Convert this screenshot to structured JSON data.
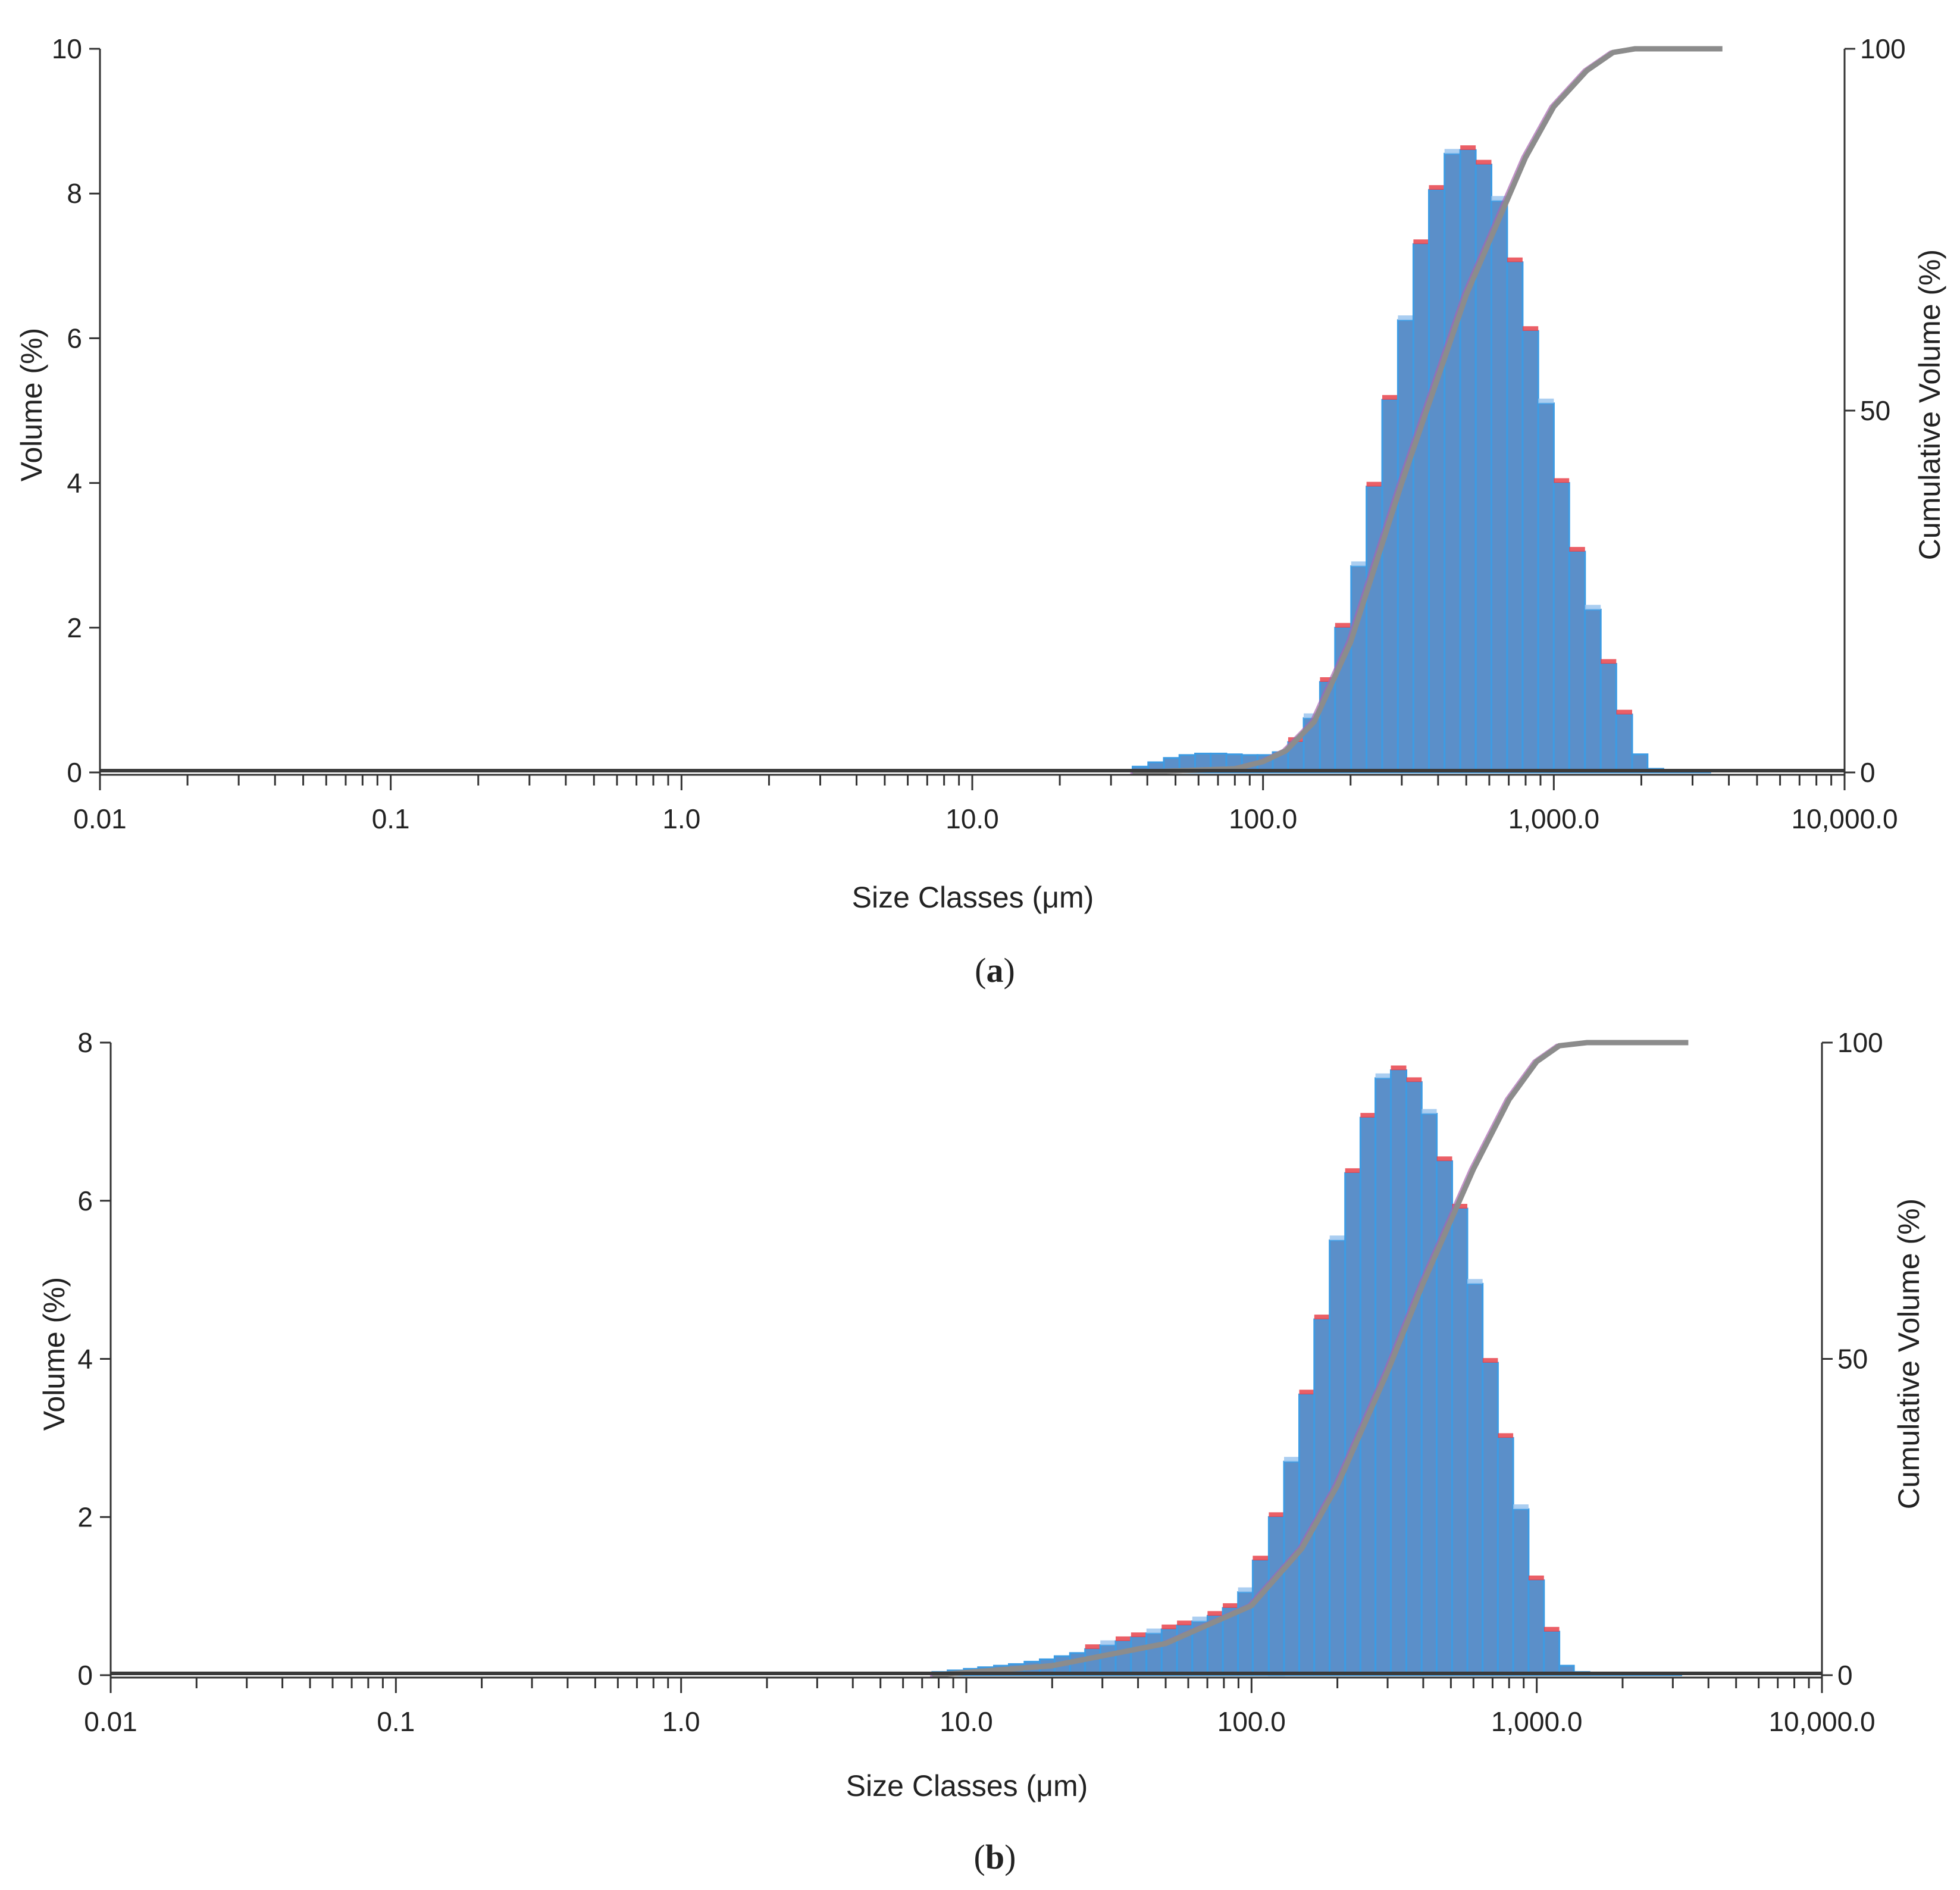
{
  "colors": {
    "bar_fill": "#5b8fc9",
    "bar_edge": "#3d9be3",
    "bar_highlight_red": "#e8434b",
    "bar_highlight_light": "#9cc6ee",
    "cumulative_line": "#8c8c8c",
    "cumulative_line_alt": "#a864b0",
    "axis": "#333333"
  },
  "chart_data": [
    {
      "type": "bar",
      "panel": "(a)",
      "xlabel": "Size Classes (μm)",
      "ylabel": "Volume (%)",
      "y2label": "Cumulative Volume (%)",
      "xscale": "log",
      "xlim": [
        0.01,
        10000
      ],
      "ylim": [
        0,
        10
      ],
      "y2lim": [
        0,
        100
      ],
      "xticks": [
        "0.01",
        "0.1",
        "1.0",
        "10.0",
        "100.0",
        "1,000.0",
        "10,000.0"
      ],
      "yticks": [
        "0",
        "2",
        "4",
        "6",
        "8",
        "10"
      ],
      "y2ticks": [
        "0",
        "50",
        "100"
      ],
      "grid": false,
      "bins_um": [
        35.6,
        40.3,
        45.6,
        51.6,
        58.4,
        66.1,
        74.8,
        84.6,
        95.7,
        108,
        122,
        138,
        157,
        177,
        201,
        227,
        257,
        291,
        329,
        372,
        421,
        477,
        539,
        610,
        691,
        781,
        884,
        1000,
        1130,
        1280,
        1450,
        1640,
        1860,
        2100,
        2380,
        2690,
        3050,
        3450
      ],
      "values": [
        0.08,
        0.14,
        0.2,
        0.24,
        0.26,
        0.26,
        0.25,
        0.24,
        0.24,
        0.28,
        0.42,
        0.75,
        1.25,
        2.0,
        2.85,
        3.95,
        5.15,
        6.25,
        7.3,
        8.05,
        8.55,
        8.6,
        8.4,
        7.9,
        7.05,
        6.1,
        5.1,
        4.0,
        3.05,
        2.25,
        1.5,
        0.8,
        0.25,
        0.05,
        0.03,
        0.02,
        0.01,
        0.0
      ],
      "cumulative": {
        "x_um": [
          35.6,
          80,
          100,
          120,
          150,
          200,
          300,
          500,
          800,
          1000,
          1300,
          1600,
          1900,
          2500,
          3800
        ],
        "values": [
          0,
          0.5,
          1.5,
          3,
          7,
          18,
          40,
          66,
          85,
          92,
          97,
          99.5,
          100,
          100,
          100
        ]
      }
    },
    {
      "type": "bar",
      "panel": "(b)",
      "xlabel": "Size Classes (μm)",
      "ylabel": "Volume (%)",
      "y2label": "Cumulative Volume (%)",
      "xscale": "log",
      "xlim": [
        0.01,
        10000
      ],
      "ylim": [
        0,
        8
      ],
      "y2lim": [
        0,
        100
      ],
      "xticks": [
        "0.01",
        "0.1",
        "1.0",
        "10.0",
        "100.0",
        "1,000.0",
        "10,000.0"
      ],
      "yticks": [
        "0",
        "2",
        "4",
        "6",
        "8"
      ],
      "y2ticks": [
        "0",
        "50",
        "100"
      ],
      "grid": false,
      "bins_um": [
        7.6,
        8.6,
        9.8,
        11.0,
        12.5,
        14.1,
        16.0,
        18.1,
        20.4,
        23.1,
        26.1,
        29.5,
        33.4,
        37.8,
        42.8,
        48.4,
        54.8,
        62.0,
        70.1,
        79.3,
        89.7,
        101,
        115,
        130,
        147,
        166,
        188,
        213,
        241,
        272,
        308,
        349,
        395,
        446,
        505,
        571,
        646,
        731,
        827,
        936,
        1060,
        1200,
        1350,
        1530,
        1730,
        1960,
        2220,
        2510,
        2840,
        3210
      ],
      "values": [
        0.04,
        0.06,
        0.08,
        0.1,
        0.12,
        0.14,
        0.17,
        0.2,
        0.24,
        0.28,
        0.33,
        0.38,
        0.43,
        0.48,
        0.53,
        0.58,
        0.63,
        0.68,
        0.75,
        0.85,
        1.05,
        1.45,
        2.0,
        2.7,
        3.55,
        4.5,
        5.5,
        6.35,
        7.05,
        7.55,
        7.65,
        7.5,
        7.1,
        6.5,
        5.9,
        4.95,
        3.95,
        3.0,
        2.1,
        1.2,
        0.55,
        0.12,
        0.04,
        0.03,
        0.02,
        0.02,
        0.01,
        0.01,
        0.01,
        0.0
      ],
      "cumulative": {
        "x_um": [
          7.6,
          20,
          50,
          100,
          150,
          200,
          300,
          400,
          600,
          800,
          1000,
          1200,
          1500,
          2000,
          3400
        ],
        "values": [
          0,
          1.5,
          5,
          11,
          20,
          30,
          48,
          62,
          80,
          91,
          97,
          99.5,
          100,
          100,
          100
        ]
      }
    }
  ],
  "caption_a": {
    "open": "(",
    "letter": "a",
    "close": ")"
  },
  "caption_b": {
    "open": "(",
    "letter": "b",
    "close": ")"
  }
}
